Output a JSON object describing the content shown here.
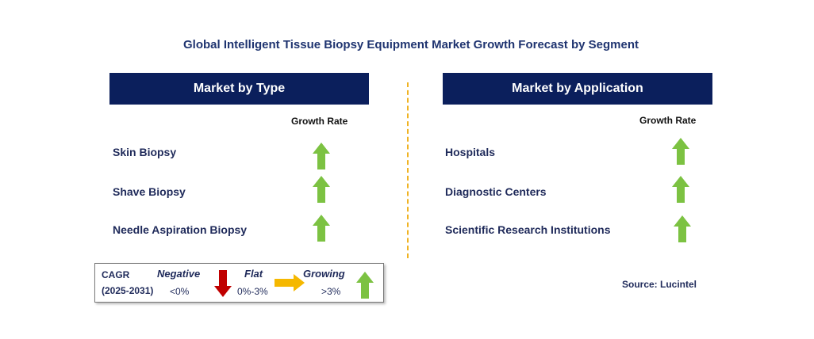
{
  "title": "Global Intelligent Tissue Biopsy Equipment Market Growth Forecast by Segment",
  "colors": {
    "header_bg": "#0b1f5c",
    "growing": "#7cc242",
    "negative": "#c00000",
    "flat": "#f5b800",
    "divider": "#f0b323"
  },
  "type_panel": {
    "header": "Market by Type",
    "growth_rate_label": "Growth Rate",
    "items": [
      {
        "label": "Skin Biopsy",
        "trend": "growing",
        "icon": "up-arrow-icon"
      },
      {
        "label": "Shave Biopsy",
        "trend": "growing",
        "icon": "up-arrow-icon"
      },
      {
        "label": "Needle Aspiration Biopsy",
        "trend": "growing",
        "icon": "up-arrow-icon"
      }
    ]
  },
  "application_panel": {
    "header": "Market by Application",
    "growth_rate_label": "Growth Rate",
    "items": [
      {
        "label": "Hospitals",
        "trend": "growing",
        "icon": "up-arrow-icon"
      },
      {
        "label": "Diagnostic Centers",
        "trend": "growing",
        "icon": "up-arrow-icon"
      },
      {
        "label": "Scientific Research Institutions",
        "trend": "growing",
        "icon": "up-arrow-icon"
      }
    ]
  },
  "legend": {
    "cagr_label": "CAGR",
    "period": "(2025-2031)",
    "negative_label": "Negative",
    "negative_range": "<0%",
    "flat_label": "Flat",
    "flat_range": "0%-3%",
    "growing_label": "Growing",
    "growing_range": ">3%"
  },
  "source": "Source: Lucintel"
}
